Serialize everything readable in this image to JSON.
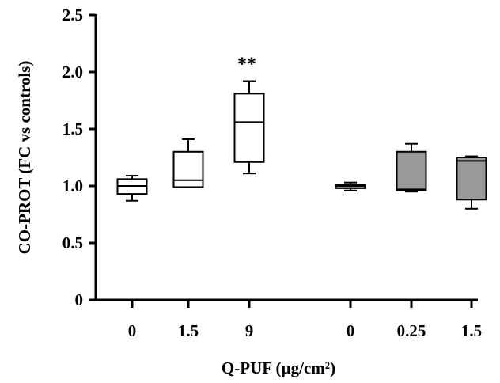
{
  "chart_data": {
    "type": "box",
    "title": "",
    "xlabel": "Q-PUF (µg/cm²)",
    "ylabel": "CO-PROT (FC vs controls)",
    "ylim": [
      0,
      2.5
    ],
    "yticks": [
      {
        "value": 0,
        "label": "0"
      },
      {
        "value": 0.5,
        "label": "0.5"
      },
      {
        "value": 1.0,
        "label": "1.0"
      },
      {
        "value": 1.5,
        "label": "1.5"
      },
      {
        "value": 2.0,
        "label": "2.0"
      },
      {
        "value": 2.5,
        "label": "2.5"
      }
    ],
    "grid": false,
    "groups": [
      {
        "fill": "#ffffff",
        "boxes": [
          {
            "category": "0",
            "min": 0.87,
            "q1": 0.93,
            "median": 1.0,
            "q3": 1.06,
            "max": 1.09,
            "annotation": ""
          },
          {
            "category": "1.5",
            "min": 0.99,
            "q1": 0.99,
            "median": 1.05,
            "q3": 1.3,
            "max": 1.41,
            "annotation": ""
          },
          {
            "category": "9",
            "min": 1.11,
            "q1": 1.21,
            "median": 1.56,
            "q3": 1.81,
            "max": 1.92,
            "annotation": "**"
          }
        ]
      },
      {
        "fill": "#999999",
        "boxes": [
          {
            "category": "0",
            "min": 0.96,
            "q1": 0.98,
            "median": 1.0,
            "q3": 1.01,
            "max": 1.03,
            "annotation": ""
          },
          {
            "category": "0.25",
            "min": 0.95,
            "q1": 0.96,
            "median": 0.97,
            "q3": 1.3,
            "max": 1.37,
            "annotation": ""
          },
          {
            "category": "1.5",
            "min": 0.8,
            "q1": 0.88,
            "median": 1.22,
            "q3": 1.25,
            "max": 1.26,
            "annotation": ""
          }
        ]
      }
    ]
  }
}
